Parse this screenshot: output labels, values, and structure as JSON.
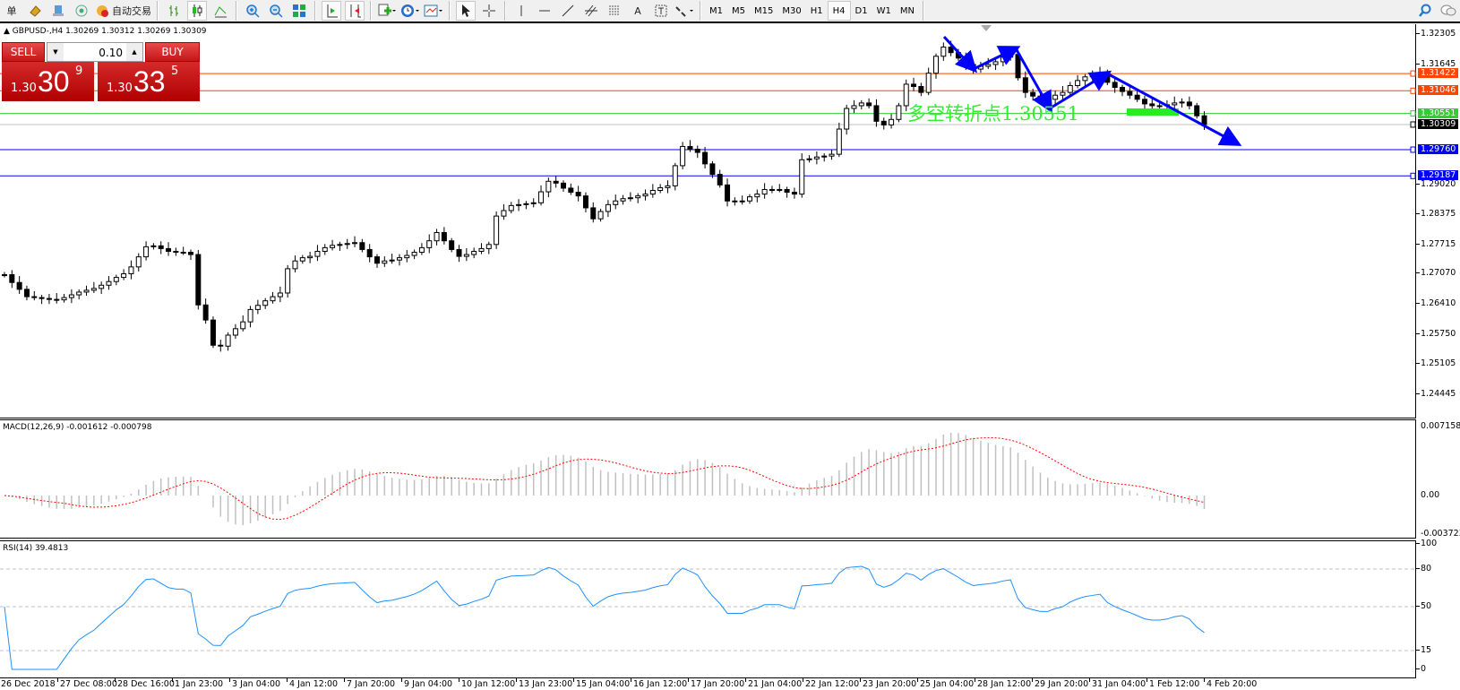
{
  "toolbar": {
    "menu_fragment": "单",
    "auto_trade_label": "自动交易",
    "icons": [
      "market-watch-icon",
      "navigator-icon",
      "signal-icon",
      "auto-trading-icon",
      "bar-chart-icon",
      "candlestick-icon",
      "line-chart-icon",
      "zoom-in-icon",
      "zoom-out-icon",
      "tile-windows-icon",
      "chart-shift-icon",
      "auto-scroll-icon",
      "indicators-icon",
      "periods-icon",
      "templates-icon",
      "cursor-icon",
      "crosshair-icon",
      "vertical-line-icon",
      "horizontal-line-icon",
      "trendline-icon",
      "equidistant-channel-icon",
      "fibonacci-icon",
      "text-icon",
      "text-label-icon",
      "arrows-icon"
    ],
    "timeframes": [
      "M1",
      "M5",
      "M15",
      "M30",
      "H1",
      "H4",
      "D1",
      "W1",
      "MN"
    ],
    "active_timeframe": "H4",
    "text_tool": "A"
  },
  "chart": {
    "header": "GBPUSD-,H4  1.30269 1.30312 1.30269 1.30309",
    "overlay_text": "多空转折点1.30551",
    "annotation_color": "#33ee33",
    "arrow_color": "#0000ff"
  },
  "trade_panel": {
    "sell_label": "SELL",
    "buy_label": "BUY",
    "lot": "0.10",
    "sell_small": "1.30",
    "sell_big": "30",
    "sell_sup": "9",
    "buy_small": "1.30",
    "buy_big": "33",
    "buy_sup": "5"
  },
  "chart_data": [
    {
      "type": "candlestick",
      "symbol": "GBPUSD-",
      "timeframe": "H4",
      "ylim": [
        1.2389,
        1.325
      ],
      "y_ticks": [
        "1.32305",
        "1.31645",
        "1.29020",
        "1.28375",
        "1.27715",
        "1.27070",
        "1.26410",
        "1.25750",
        "1.25105",
        "1.24445"
      ],
      "x_ticks": [
        "26 Dec 2018",
        "27 Dec 08:00",
        "28 Dec 16:00",
        "1 Jan 23:00",
        "3 Jan 04:00",
        "4 Jan 12:00",
        "7 Jan 20:00",
        "9 Jan 04:00",
        "10 Jan 12:00",
        "13 Jan 23:00",
        "15 Jan 04:00",
        "16 Jan 12:00",
        "17 Jan 20:00",
        "21 Jan 04:00",
        "22 Jan 12:00",
        "23 Jan 20:00",
        "25 Jan 04:00",
        "28 Jan 12:00",
        "29 Jan 20:00",
        "31 Jan 04:00",
        "1 Feb 12:00",
        "4 Feb 20:00"
      ],
      "levels": [
        {
          "price": "1.31422",
          "color": "#ff4500"
        },
        {
          "price": "1.31046",
          "color": "#ff4500"
        },
        {
          "price": "1.30551",
          "color": "#32cd32"
        },
        {
          "price": "1.30309",
          "color": "#000000",
          "line": "#c0c0c0"
        },
        {
          "price": "1.29760",
          "color": "#0000ff"
        },
        {
          "price": "1.29187",
          "color": "#0000ff"
        }
      ],
      "closes": [
        1.2703,
        1.2686,
        1.2671,
        1.2655,
        1.2653,
        1.2651,
        1.2649,
        1.2648,
        1.2653,
        1.2659,
        1.2665,
        1.2669,
        1.2673,
        1.268,
        1.2688,
        1.2697,
        1.2705,
        1.272,
        1.2742,
        1.2764,
        1.2766,
        1.276,
        1.2754,
        1.2752,
        1.2752,
        1.2747,
        1.2637,
        1.2604,
        1.2549,
        1.2547,
        1.2571,
        1.2585,
        1.26,
        1.2627,
        1.2636,
        1.2646,
        1.2655,
        1.2663,
        1.2716,
        1.2733,
        1.274,
        1.2743,
        1.2754,
        1.2762,
        1.2767,
        1.2769,
        1.2771,
        1.2773,
        1.2758,
        1.2742,
        1.2728,
        1.2733,
        1.2735,
        1.274,
        1.2745,
        1.2752,
        1.2762,
        1.2777,
        1.2795,
        1.2777,
        1.2758,
        1.2743,
        1.2747,
        1.2754,
        1.276,
        1.2769,
        1.2831,
        1.2843,
        1.2854,
        1.2856,
        1.2858,
        1.286,
        1.2884,
        1.2907,
        1.2903,
        1.2892,
        1.2883,
        1.2875,
        1.2849,
        1.2825,
        1.2841,
        1.2856,
        1.2864,
        1.2869,
        1.2871,
        1.2875,
        1.2879,
        1.2887,
        1.2893,
        1.2897,
        1.2941,
        1.2983,
        1.2977,
        1.297,
        1.2945,
        1.2922,
        1.2899,
        1.2864,
        1.2864,
        1.2864,
        1.2873,
        1.2879,
        1.2889,
        1.2889,
        1.2889,
        1.2883,
        1.2879,
        1.2954,
        1.2956,
        1.296,
        1.2962,
        1.2966,
        1.3021,
        1.3066,
        1.3072,
        1.3078,
        1.3072,
        1.3038,
        1.303,
        1.3042,
        1.3072,
        1.3119,
        1.3114,
        1.3101,
        1.3143,
        1.318,
        1.32,
        1.3188,
        1.3176,
        1.3162,
        1.3152,
        1.3158,
        1.3162,
        1.3168,
        1.3178,
        1.3184,
        1.3133,
        1.3101,
        1.3093,
        1.3086,
        1.3086,
        1.3095,
        1.3101,
        1.3116,
        1.3127,
        1.3135,
        1.3139,
        1.3143,
        1.3123,
        1.3112,
        1.3103,
        1.3095,
        1.3086,
        1.3076,
        1.3072,
        1.3072,
        1.3074,
        1.3078,
        1.308,
        1.3072,
        1.305,
        1.3031
      ]
    },
    {
      "type": "bar",
      "title": "MACD(12,26,9) -0.001612 -0.000798",
      "ylim": [
        -0.003723,
        0.007158
      ],
      "y_ticks": [
        "0.007158",
        "0.00",
        "-0.003723"
      ],
      "signal_color": "#ff0000",
      "histogram_color": "#c0c0c0"
    },
    {
      "type": "line",
      "title": "RSI(14) 39.4813",
      "ylim": [
        0,
        100
      ],
      "y_ticks": [
        "100",
        "80",
        "50",
        "15",
        "0"
      ],
      "levels": [
        80,
        50,
        15
      ],
      "line_color": "#1e90ff"
    }
  ]
}
